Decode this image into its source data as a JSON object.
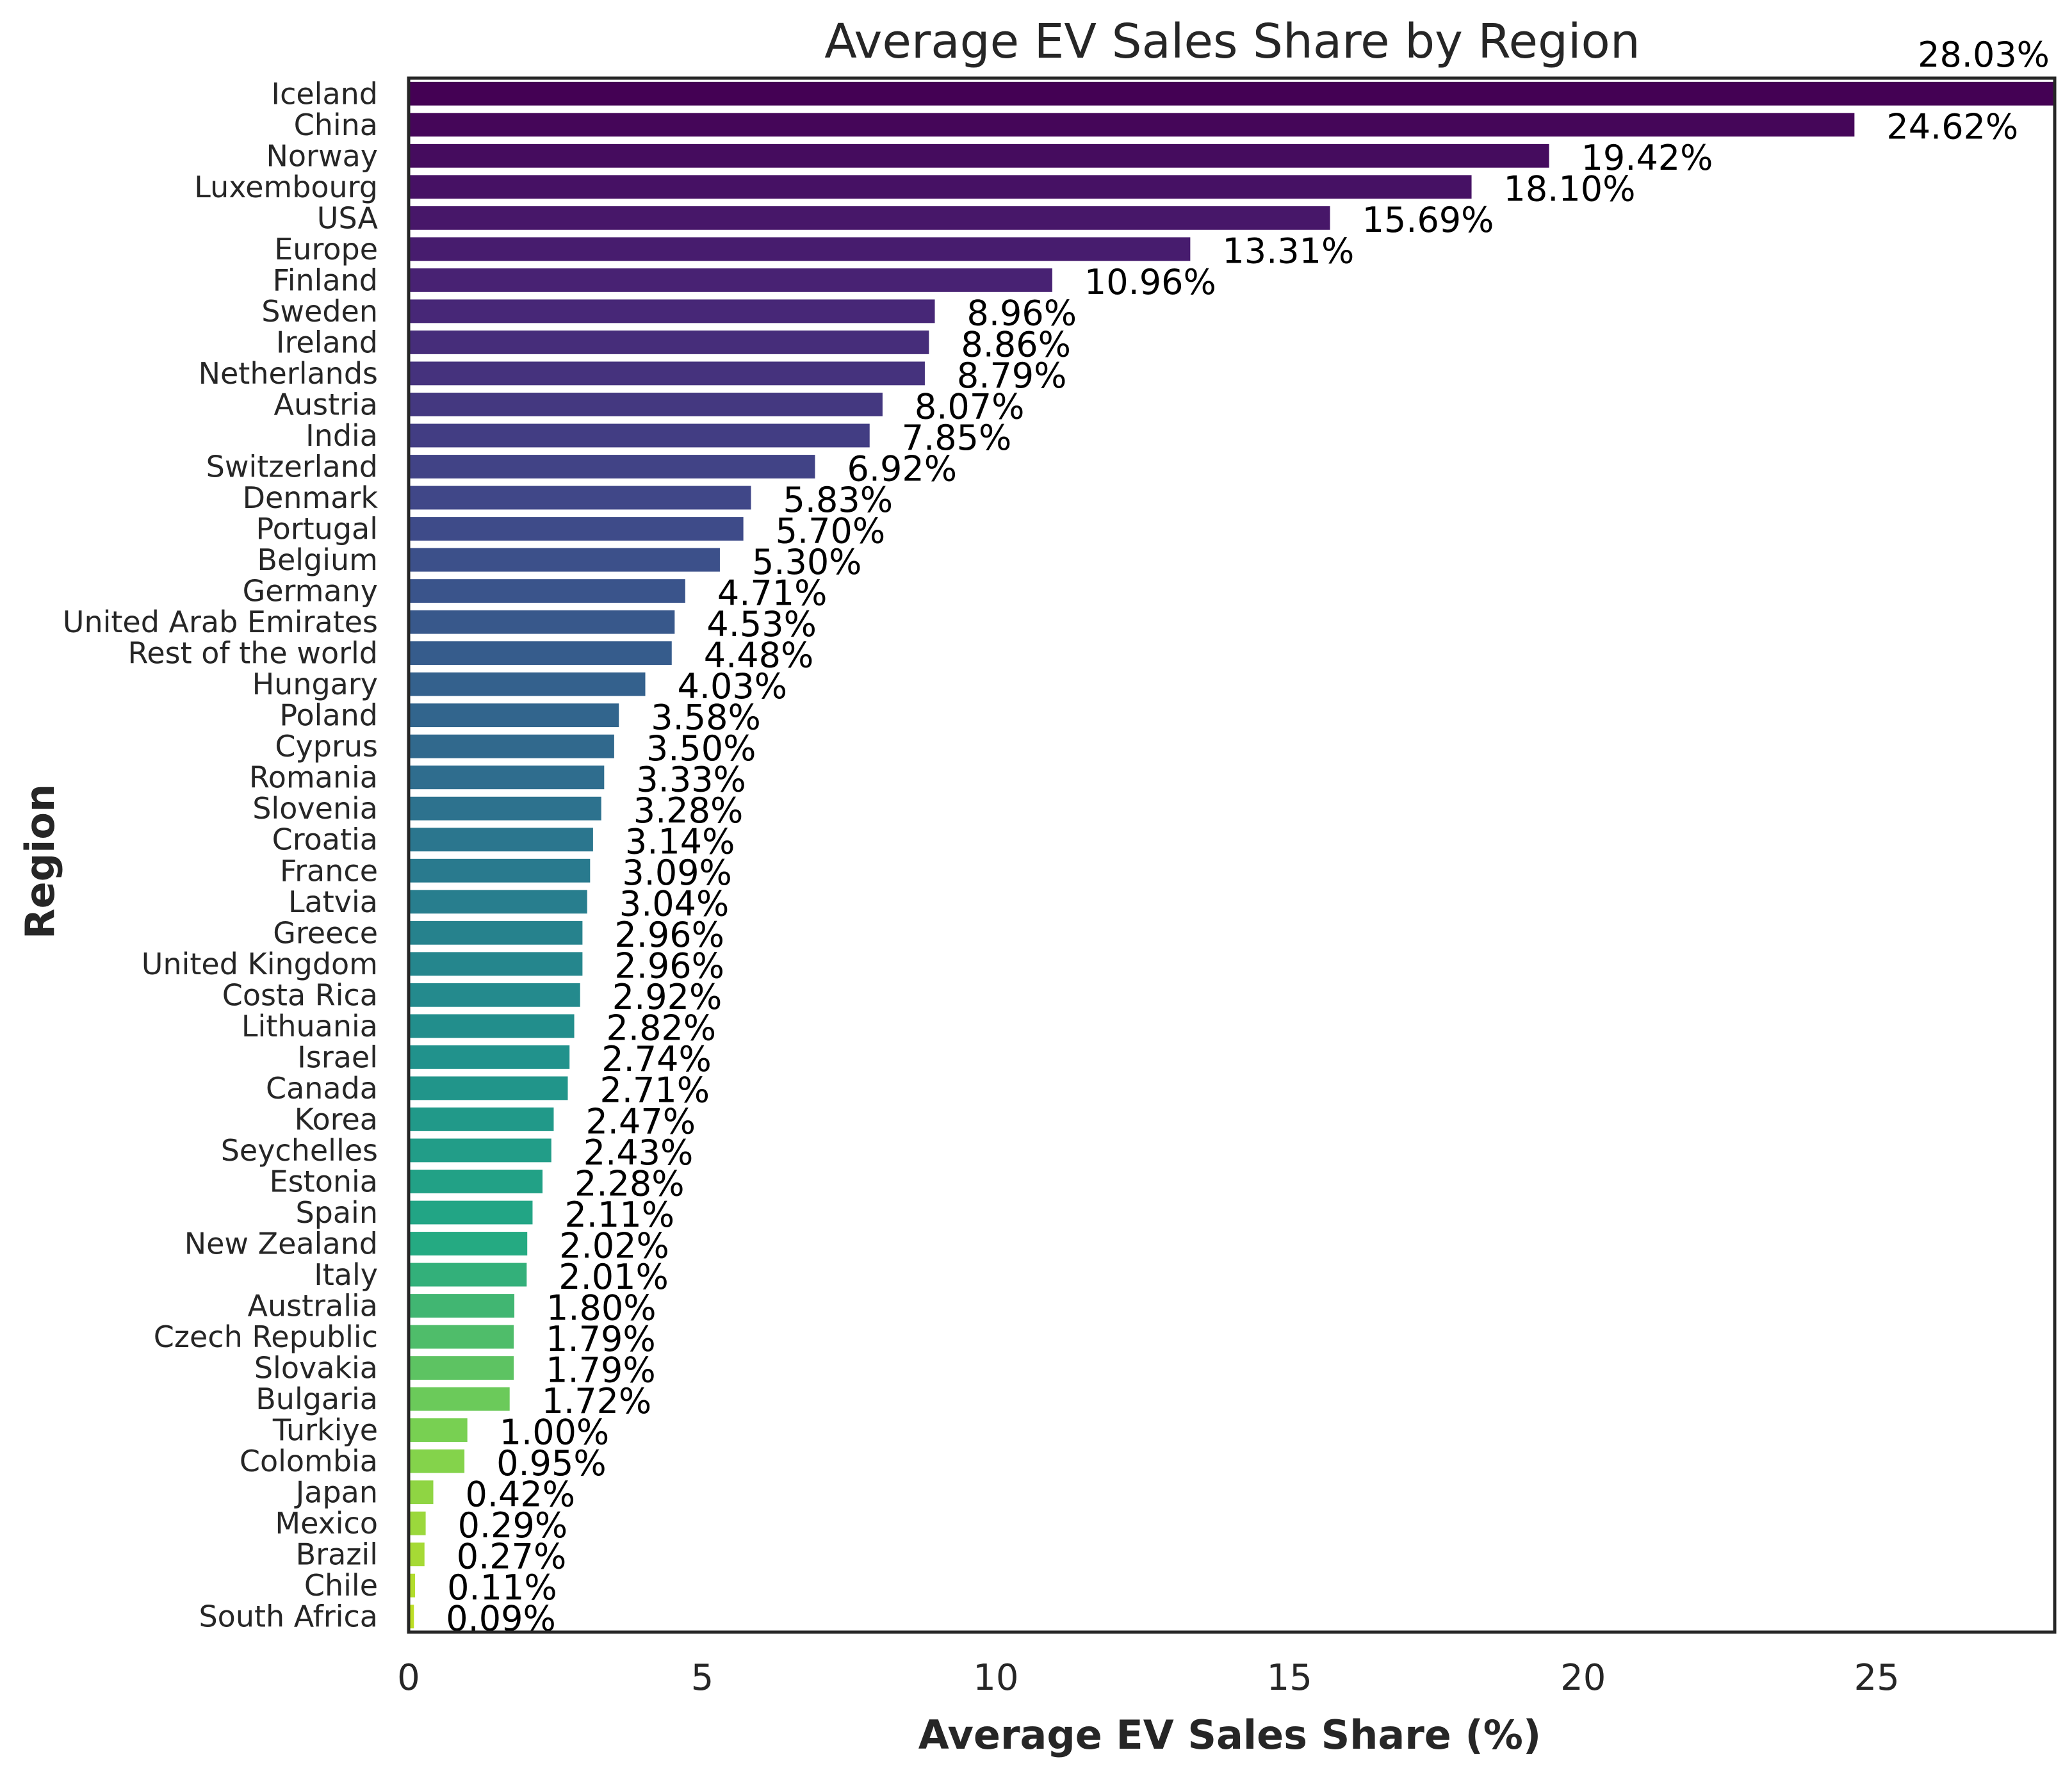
{
  "chart_data": {
    "type": "bar",
    "orientation": "horizontal",
    "title": "Average EV Sales Share by Region",
    "xlabel": "Average EV Sales Share (%)",
    "ylabel": "Region",
    "xlim": [
      0,
      28.03
    ],
    "xticks": [
      0,
      5,
      10,
      15,
      20,
      25
    ],
    "grid": false,
    "colormap": "viridis",
    "categories": [
      "Iceland",
      "China",
      "Norway",
      "Luxembourg",
      "USA",
      "Europe",
      "Finland",
      "Sweden",
      "Ireland",
      "Netherlands",
      "Austria",
      "India",
      "Switzerland",
      "Denmark",
      "Portugal",
      "Belgium",
      "Germany",
      "United Arab Emirates",
      "Rest of the world",
      "Hungary",
      "Poland",
      "Cyprus",
      "Romania",
      "Slovenia",
      "Croatia",
      "France",
      "Latvia",
      "Greece",
      "United Kingdom",
      "Costa Rica",
      "Lithuania",
      "Israel",
      "Canada",
      "Korea",
      "Seychelles",
      "Estonia",
      "Spain",
      "New Zealand",
      "Italy",
      "Australia",
      "Czech Republic",
      "Slovakia",
      "Bulgaria",
      "Turkiye",
      "Colombia",
      "Japan",
      "Mexico",
      "Brazil",
      "Chile",
      "South Africa"
    ],
    "values": [
      28.03,
      24.62,
      19.42,
      18.1,
      15.69,
      13.31,
      10.96,
      8.96,
      8.86,
      8.79,
      8.07,
      7.85,
      6.92,
      5.83,
      5.7,
      5.3,
      4.71,
      4.53,
      4.48,
      4.03,
      3.58,
      3.5,
      3.33,
      3.28,
      3.14,
      3.09,
      3.04,
      2.96,
      2.96,
      2.92,
      2.82,
      2.74,
      2.71,
      2.47,
      2.43,
      2.28,
      2.11,
      2.02,
      2.01,
      1.8,
      1.79,
      1.79,
      1.72,
      1.0,
      0.95,
      0.42,
      0.29,
      0.27,
      0.11,
      0.09
    ],
    "value_labels": [
      "28.03%",
      "24.62%",
      "19.42%",
      "18.10%",
      "15.69%",
      "13.31%",
      "10.96%",
      "8.96%",
      "8.86%",
      "8.79%",
      "8.07%",
      "7.85%",
      "6.92%",
      "5.83%",
      "5.70%",
      "5.30%",
      "4.71%",
      "4.53%",
      "4.48%",
      "4.03%",
      "3.58%",
      "3.50%",
      "3.33%",
      "3.28%",
      "3.14%",
      "3.09%",
      "3.04%",
      "2.96%",
      "2.96%",
      "2.92%",
      "2.82%",
      "2.74%",
      "2.71%",
      "2.47%",
      "2.43%",
      "2.28%",
      "2.11%",
      "2.02%",
      "2.01%",
      "1.80%",
      "1.79%",
      "1.79%",
      "1.72%",
      "1.00%",
      "0.95%",
      "0.42%",
      "0.29%",
      "0.27%",
      "0.11%",
      "0.09%"
    ]
  }
}
